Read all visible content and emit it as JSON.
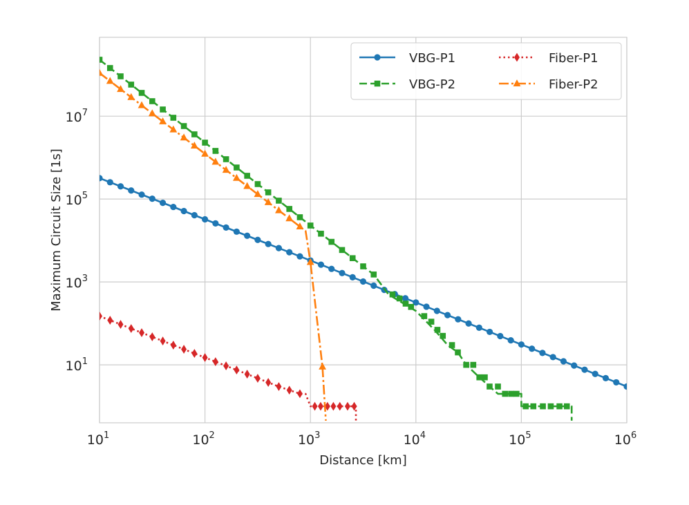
{
  "chart_data": {
    "type": "line",
    "title": "",
    "xlabel": "Distance [km]",
    "ylabel": "Maximum Circuit Size [1s]",
    "xscale": "log",
    "yscale": "log",
    "xlim": [
      10,
      1000000
    ],
    "ylim": [
      0.4,
      800000000
    ],
    "grid": true,
    "legend_position": "top-right",
    "legend_columns": 2,
    "x_ticks": [
      {
        "base": "10",
        "exp": "1",
        "value": 10
      },
      {
        "base": "10",
        "exp": "2",
        "value": 100
      },
      {
        "base": "10",
        "exp": "3",
        "value": 1000
      },
      {
        "base": "10",
        "exp": "4",
        "value": 10000
      },
      {
        "base": "10",
        "exp": "5",
        "value": 100000
      },
      {
        "base": "10",
        "exp": "6",
        "value": 1000000
      }
    ],
    "y_ticks": [
      {
        "base": "10",
        "exp": "1",
        "value": 10
      },
      {
        "base": "10",
        "exp": "3",
        "value": 1000
      },
      {
        "base": "10",
        "exp": "5",
        "value": 100000
      },
      {
        "base": "10",
        "exp": "7",
        "value": 10000000
      }
    ],
    "series": [
      {
        "name": "VBG-P1",
        "color": "#1f77b4",
        "dash": "",
        "marker": "circle",
        "steps": false,
        "points": [
          [
            10,
            320000
          ],
          [
            1000,
            3300
          ],
          [
            1000000,
            3
          ]
        ]
      },
      {
        "name": "VBG-P2",
        "color": "#2ca02c",
        "dash": "11,5",
        "marker": "square",
        "steps": false,
        "points": [
          [
            10,
            230000000
          ],
          [
            100,
            2300000
          ],
          [
            1000,
            23000
          ],
          [
            4000,
            1500
          ],
          [
            5500,
            500
          ],
          [
            10000,
            200
          ],
          [
            15000,
            70
          ],
          [
            20000,
            30
          ],
          [
            25000,
            20
          ],
          [
            30000,
            10
          ],
          [
            40000,
            5
          ],
          [
            50000,
            3
          ],
          [
            60000,
            2
          ],
          [
            100000,
            2
          ],
          [
            100000,
            1
          ],
          [
            300000,
            1
          ],
          [
            300000,
            0.45
          ]
        ],
        "marker_points": [
          [
            6000,
            500
          ],
          [
            7000,
            400
          ],
          [
            8000,
            300
          ],
          [
            9000,
            250
          ],
          [
            12000,
            150
          ],
          [
            14000,
            110
          ],
          [
            16000,
            70
          ],
          [
            18000,
            50
          ],
          [
            22000,
            30
          ],
          [
            25000,
            20
          ],
          [
            30000,
            10
          ],
          [
            35000,
            10
          ],
          [
            40000,
            5
          ],
          [
            45000,
            5
          ],
          [
            50000,
            3
          ],
          [
            60000,
            3
          ],
          [
            70000,
            2
          ],
          [
            80000,
            2
          ],
          [
            90000,
            2
          ],
          [
            110000,
            1
          ],
          [
            130000,
            1
          ],
          [
            160000,
            1
          ],
          [
            190000,
            1
          ],
          [
            230000,
            1
          ],
          [
            270000,
            1
          ]
        ]
      },
      {
        "name": "Fiber-P1",
        "color": "#d62728",
        "dash": "2.5,4",
        "marker": "diamond",
        "steps": false,
        "points": [
          [
            10,
            150
          ],
          [
            500,
            3
          ],
          [
            800,
            2
          ],
          [
            900,
            2
          ],
          [
            1000,
            1
          ],
          [
            2700,
            1
          ],
          [
            2700,
            0.45
          ]
        ],
        "marker_points": [
          [
            1100,
            1
          ],
          [
            1250,
            1
          ],
          [
            1450,
            1
          ],
          [
            1650,
            1
          ],
          [
            1900,
            1
          ],
          [
            2250,
            1
          ],
          [
            2600,
            1
          ]
        ]
      },
      {
        "name": "Fiber-P2",
        "color": "#ff7f0e",
        "dash": "14,4,3,4",
        "marker": "triangle",
        "steps": false,
        "points": [
          [
            10,
            110000000
          ],
          [
            900,
            17000
          ],
          [
            1000,
            3000
          ],
          [
            1300,
            9
          ],
          [
            1400,
            0.45
          ]
        ],
        "marker_points": [
          [
            1000,
            3000
          ],
          [
            1300,
            9
          ]
        ]
      }
    ]
  }
}
